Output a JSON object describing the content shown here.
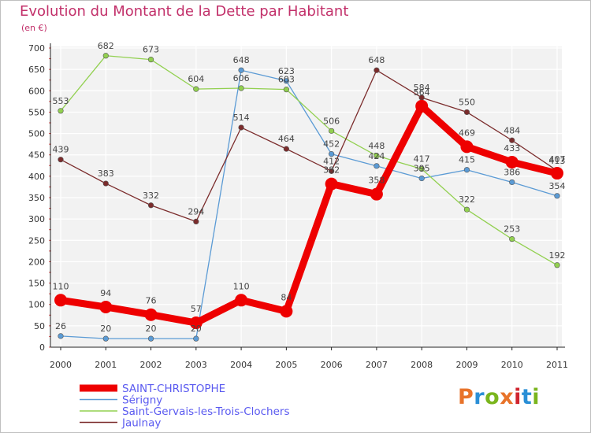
{
  "title": "Evolution du Montant de la Dette par Habitant",
  "subtitle": "(en €)",
  "logo": {
    "text": "Proxiti",
    "colors": [
      "#e8732a",
      "#2a8fd6",
      "#7ab51d",
      "#e8732a",
      "#d0252f",
      "#2a8fd6",
      "#7ab51d"
    ]
  },
  "chart_data": {
    "type": "line",
    "title": "Evolution du Montant de la Dette par Habitant",
    "ylabel": "(en €)",
    "xlabel": "",
    "ylim": [
      0,
      700
    ],
    "yticks": [
      0,
      50,
      100,
      150,
      200,
      250,
      300,
      350,
      400,
      450,
      500,
      550,
      600,
      650,
      700
    ],
    "grid": true,
    "legend_position": "bottom-left",
    "x": [
      "2000",
      "2001",
      "2002",
      "2003",
      "2004",
      "2005",
      "2006",
      "2007",
      "2008",
      "2009",
      "2010",
      "2011"
    ],
    "series": [
      {
        "name": "SAINT-CHRISTOPHE",
        "color": "#ee0000",
        "highlight": true,
        "values": [
          110,
          94,
          76,
          57,
          110,
          84,
          382,
          358,
          564,
          469,
          433,
          407
        ]
      },
      {
        "name": "Sérigny",
        "color": "#5b9bd5",
        "highlight": false,
        "values": [
          26,
          20,
          20,
          20,
          648,
          623,
          452,
          424,
          395,
          415,
          386,
          354
        ]
      },
      {
        "name": "Saint-Gervais-les-Trois-Clochers",
        "color": "#92d050",
        "highlight": false,
        "values": [
          553,
          682,
          673,
          604,
          606,
          603,
          506,
          448,
          417,
          322,
          253,
          192
        ]
      },
      {
        "name": "Jaulnay",
        "color": "#7b2c2c",
        "highlight": false,
        "values": [
          439,
          383,
          332,
          294,
          514,
          464,
          412,
          648,
          584,
          550,
          484,
          413
        ]
      }
    ]
  }
}
